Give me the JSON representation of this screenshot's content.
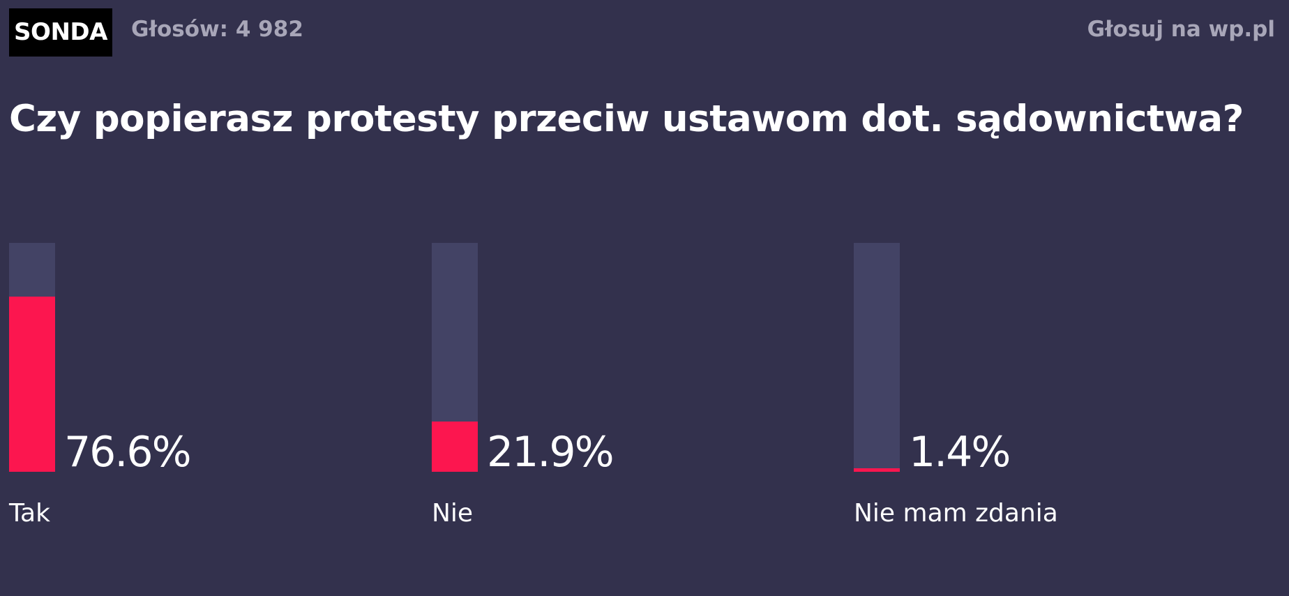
{
  "header": {
    "badge": "SONDA",
    "votes_text": "Głosów: 4 982",
    "vote_link": "Głosuj na wp.pl"
  },
  "colors": {
    "background": "#33314d",
    "track": "#434365",
    "accent": "#fc164f",
    "muted_text": "#a8a6b8"
  },
  "chart_data": {
    "type": "bar",
    "title": "Czy popierasz protesty przeciw ustawom dot. sądownictwa?",
    "categories": [
      "Tak",
      "Nie",
      "Nie mam zdania"
    ],
    "values": [
      76.6,
      21.9,
      1.4
    ],
    "value_labels": [
      "76.6%",
      "21.9%",
      "1.4%"
    ],
    "ylim": [
      0,
      100
    ],
    "xlabel": "",
    "ylabel": "",
    "unit": "%"
  }
}
